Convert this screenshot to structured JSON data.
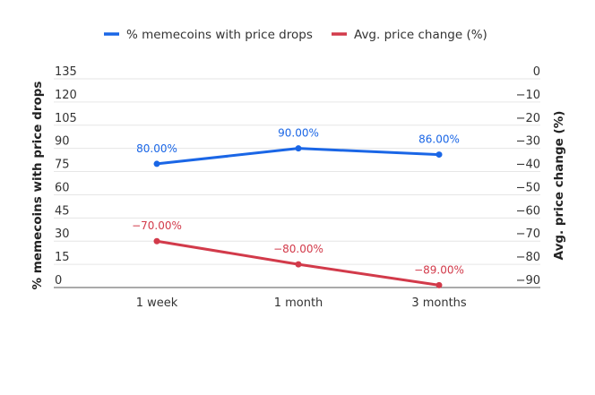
{
  "chart_data": {
    "type": "line",
    "title": "",
    "categories": [
      "1 week",
      "1 month",
      "3 months"
    ],
    "xlabel": "",
    "series": [
      {
        "name": "% memecoins with price drops",
        "axis": "left",
        "color": "#1a66e6",
        "values": [
          80,
          90,
          86
        ],
        "labels": [
          "80.00%",
          "90.00%",
          "86.00%"
        ]
      },
      {
        "name": "Avg. price change (%)",
        "axis": "right",
        "color": "#d23a4a",
        "values": [
          -70,
          -80,
          -89
        ],
        "labels": [
          "-70.00%",
          "-80.00%",
          "-89.00%"
        ]
      }
    ],
    "y_left": {
      "label": "% memecoins with price drops",
      "range": [
        0,
        135
      ],
      "ticks": [
        0,
        15,
        30,
        45,
        60,
        75,
        90,
        105,
        120,
        135
      ]
    },
    "y_right": {
      "label": "Avg. price change (%)",
      "range": [
        -90,
        0
      ],
      "ticks": [
        0,
        -10,
        -20,
        -30,
        -40,
        -50,
        -60,
        -70,
        -80,
        -90
      ]
    },
    "grid": true,
    "legend": {
      "position": "top-center",
      "entries": [
        "% memecoins with price drops",
        "Avg. price change (%)"
      ]
    }
  }
}
